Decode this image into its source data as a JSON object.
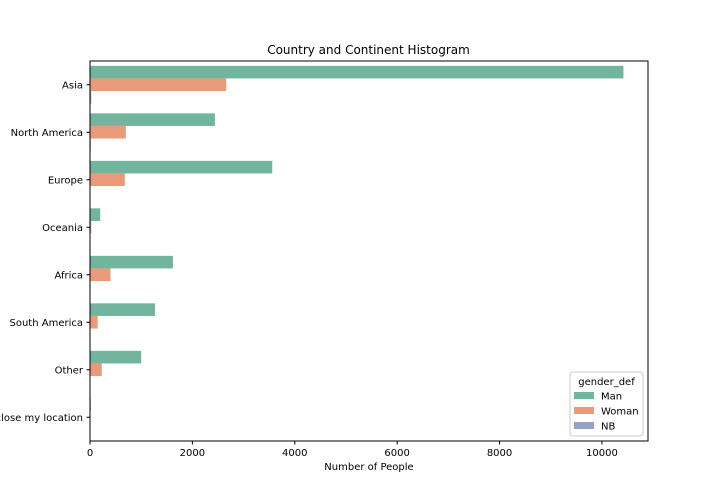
{
  "chart_data": {
    "type": "bar",
    "orientation": "horizontal",
    "title": "Country and Continent Histogram",
    "xlabel": "Number of People",
    "ylabel": "",
    "xlim": [
      0,
      10900
    ],
    "xticks": [
      0,
      2000,
      4000,
      6000,
      8000,
      10000
    ],
    "xtick_labels": [
      "0",
      "2000",
      "4000",
      "6000",
      "8000",
      "10000"
    ],
    "categories": [
      "Asia",
      "North America",
      "Europe",
      "Oceania",
      "Africa",
      "South America",
      "Other",
      "I prefer not to disclose my location"
    ],
    "series": [
      {
        "name": "Man",
        "color": "#72b59f",
        "values": [
          10420,
          2440,
          3560,
          200,
          1620,
          1270,
          1000,
          15
        ]
      },
      {
        "name": "Woman",
        "color": "#e99a78",
        "values": [
          2660,
          700,
          680,
          25,
          400,
          150,
          230,
          3
        ]
      },
      {
        "name": "NB",
        "color": "#96a2c4",
        "values": [
          25,
          15,
          8,
          2,
          6,
          4,
          5,
          1
        ]
      }
    ],
    "grid": false,
    "legend": {
      "title": "gender_def",
      "placement": "lower-right"
    }
  }
}
